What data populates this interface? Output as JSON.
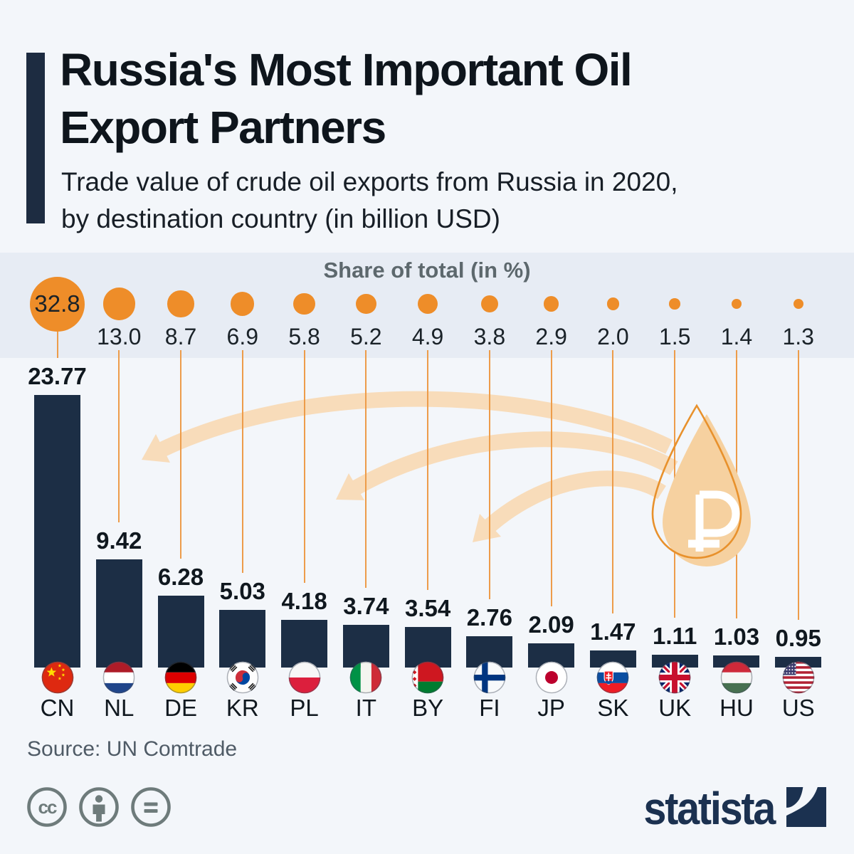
{
  "header": {
    "title_line1": "Russia's Most Important Oil",
    "title_line2": "Export Partners",
    "subtitle_line1": "Trade value of crude oil exports from Russia in 2020,",
    "subtitle_line2": "by destination country (in billion USD)"
  },
  "chart_data": {
    "type": "bar",
    "title": "Russia's Most Important Oil Export Partners",
    "subtitle": "Trade value of crude oil exports from Russia in 2020, by destination country (in billion USD)",
    "share_title": "Share of total (in %)",
    "categories": [
      "CN",
      "NL",
      "DE",
      "KR",
      "PL",
      "IT",
      "BY",
      "FI",
      "JP",
      "SK",
      "UK",
      "HU",
      "US"
    ],
    "series": [
      {
        "name": "Trade value (billion USD)",
        "values": [
          23.77,
          9.42,
          6.28,
          5.03,
          4.18,
          3.74,
          3.54,
          2.76,
          2.09,
          1.47,
          1.11,
          1.03,
          0.95
        ]
      },
      {
        "name": "Share of total (%)",
        "values": [
          32.8,
          13.0,
          8.7,
          6.9,
          5.8,
          5.2,
          4.9,
          3.8,
          2.9,
          2.0,
          1.5,
          1.4,
          1.3
        ]
      }
    ],
    "ylim": [
      0,
      24
    ],
    "grid": false,
    "legend": "none",
    "bar_color": "#1c2e45",
    "bubble_color": "#ee8d29"
  },
  "footer": {
    "source": "Source: UN Comtrade",
    "license_icons": [
      "cc",
      "by-person",
      "nd-equals"
    ],
    "brand_wordmark": "statista"
  },
  "colors": {
    "background": "#f3f6fa",
    "band_background": "#e7ecf4",
    "bar_navy": "#1c2e45",
    "accent_orange": "#ee8d29",
    "connector_orange": "#ed9c4a",
    "arrow_peach": "#f8dcba",
    "drop_fill": "#f6d1a0",
    "drop_outline": "#e8912c",
    "text_dark": "#10181f",
    "text_gray": "#5d686d",
    "brand_navy": "#1b3150"
  }
}
